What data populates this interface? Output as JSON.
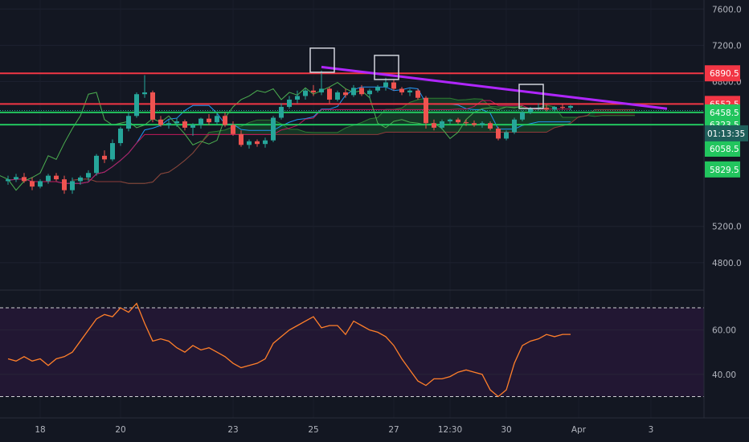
{
  "chart_data": [
    {
      "type": "candlestick",
      "panel": "price",
      "y_axis_ticks": [
        "7600.0",
        "7200.0",
        "6800.0",
        "5200.0",
        "4800.0"
      ],
      "ylim": [
        4550,
        7700
      ],
      "x_axis_ticks": [
        "18",
        "20",
        "23",
        "25",
        "27",
        "12:30",
        "30",
        "Apr",
        "3"
      ],
      "price_levels": [
        {
          "label": "6890.5",
          "value": 6890.5,
          "color": "#f23645"
        },
        {
          "label": "6552.5",
          "value": 6552.5,
          "color": "#f23645"
        },
        {
          "label": "6458.5",
          "value": 6458.5,
          "color": "#22c55e"
        },
        {
          "label": "6323.5",
          "value": 6323.5,
          "color": "#22c55e"
        },
        {
          "label": "6058.5",
          "value": 6058.5,
          "color": "#22c55e"
        },
        {
          "label": "5829.5",
          "value": 5829.5,
          "color": "#22c55e"
        }
      ],
      "current_price_line": 6480,
      "countdown": "01:13:35",
      "trendline": {
        "from": {
          "index": 39,
          "value": 6960
        },
        "to": {
          "index": 82,
          "value": 6500
        },
        "color": "#b026ff"
      },
      "highlight_boxes_at_index": [
        39,
        47,
        65
      ],
      "colors": {
        "up": "#26a69a",
        "down": "#ef5350",
        "tenkan": "#2196f3",
        "kijun": "#c2185b",
        "lagging": "#4caf50",
        "cloud_bull": "#163d27",
        "cloud_bear": "#3d1a1a"
      },
      "candles": [
        [
          5700,
          5760,
          5660,
          5720
        ],
        [
          5720,
          5780,
          5690,
          5745
        ],
        [
          5745,
          5790,
          5680,
          5700
        ],
        [
          5700,
          5740,
          5600,
          5640
        ],
        [
          5640,
          5720,
          5620,
          5700
        ],
        [
          5700,
          5780,
          5670,
          5760
        ],
        [
          5760,
          5790,
          5700,
          5720
        ],
        [
          5720,
          5760,
          5560,
          5600
        ],
        [
          5600,
          5740,
          5560,
          5700
        ],
        [
          5700,
          5760,
          5660,
          5740
        ],
        [
          5740,
          5820,
          5700,
          5790
        ],
        [
          5790,
          6000,
          5760,
          5980
        ],
        [
          5980,
          6040,
          5900,
          5940
        ],
        [
          5940,
          6160,
          5920,
          6120
        ],
        [
          6120,
          6300,
          6090,
          6280
        ],
        [
          6280,
          6460,
          6250,
          6420
        ],
        [
          6420,
          6680,
          6400,
          6660
        ],
        [
          6660,
          6870,
          6620,
          6680
        ],
        [
          6680,
          6700,
          6350,
          6380
        ],
        [
          6380,
          6420,
          6300,
          6320
        ],
        [
          6320,
          6380,
          6280,
          6340
        ],
        [
          6340,
          6400,
          6300,
          6360
        ],
        [
          6360,
          6380,
          6260,
          6290
        ],
        [
          6290,
          6340,
          6200,
          6320
        ],
        [
          6320,
          6400,
          6280,
          6390
        ],
        [
          6390,
          6440,
          6320,
          6350
        ],
        [
          6350,
          6460,
          6320,
          6420
        ],
        [
          6420,
          6460,
          6300,
          6320
        ],
        [
          6320,
          6360,
          6200,
          6220
        ],
        [
          6220,
          6260,
          6080,
          6100
        ],
        [
          6100,
          6160,
          6060,
          6140
        ],
        [
          6140,
          6160,
          6080,
          6110
        ],
        [
          6110,
          6180,
          6070,
          6150
        ],
        [
          6150,
          6420,
          6130,
          6400
        ],
        [
          6400,
          6560,
          6380,
          6520
        ],
        [
          6520,
          6640,
          6500,
          6600
        ],
        [
          6600,
          6700,
          6560,
          6640
        ],
        [
          6640,
          6720,
          6600,
          6700
        ],
        [
          6700,
          6760,
          6640,
          6680
        ],
        [
          6680,
          6920,
          6650,
          6720
        ],
        [
          6720,
          6740,
          6560,
          6600
        ],
        [
          6600,
          6700,
          6580,
          6680
        ],
        [
          6680,
          6720,
          6620,
          6650
        ],
        [
          6650,
          6760,
          6630,
          6730
        ],
        [
          6730,
          6760,
          6640,
          6660
        ],
        [
          6660,
          6720,
          6620,
          6700
        ],
        [
          6700,
          6760,
          6680,
          6740
        ],
        [
          6740,
          6840,
          6700,
          6790
        ],
        [
          6790,
          6820,
          6700,
          6720
        ],
        [
          6720,
          6740,
          6650,
          6680
        ],
        [
          6680,
          6720,
          6640,
          6700
        ],
        [
          6700,
          6720,
          6600,
          6620
        ],
        [
          6620,
          6640,
          6280,
          6340
        ],
        [
          6340,
          6380,
          6260,
          6290
        ],
        [
          6290,
          6380,
          6270,
          6360
        ],
        [
          6360,
          6390,
          6330,
          6380
        ],
        [
          6380,
          6400,
          6330,
          6350
        ],
        [
          6350,
          6380,
          6310,
          6340
        ],
        [
          6340,
          6370,
          6300,
          6320
        ],
        [
          6320,
          6360,
          6290,
          6340
        ],
        [
          6340,
          6360,
          6260,
          6280
        ],
        [
          6280,
          6300,
          6150,
          6170
        ],
        [
          6170,
          6260,
          6150,
          6240
        ],
        [
          6240,
          6400,
          6220,
          6380
        ],
        [
          6380,
          6480,
          6360,
          6460
        ],
        [
          6460,
          6520,
          6440,
          6500
        ],
        [
          6500,
          6560,
          6480,
          6510
        ],
        [
          6510,
          6540,
          6470,
          6490
        ],
        [
          6490,
          6530,
          6470,
          6520
        ],
        [
          6520,
          6560,
          6490,
          6510
        ],
        [
          6510,
          6540,
          6480,
          6530
        ]
      ]
    },
    {
      "type": "line",
      "panel": "oscillator",
      "y_axis_ticks": [
        "60.00",
        "40.00"
      ],
      "ylim": [
        24,
        74
      ],
      "bands": [
        70,
        30
      ],
      "colors": {
        "line": "#ff7f2a",
        "band": "#ffffff",
        "fill": "#221733"
      },
      "values": [
        47,
        46,
        48,
        46,
        47,
        44,
        47,
        48,
        50,
        55,
        60,
        65,
        67,
        66,
        70,
        68,
        72,
        63,
        55,
        56,
        55,
        52,
        50,
        53,
        51,
        52,
        50,
        48,
        45,
        43,
        44,
        45,
        47,
        54,
        57,
        60,
        62,
        64,
        66,
        61,
        62,
        62,
        58,
        64,
        62,
        60,
        59,
        57,
        53,
        47,
        42,
        37,
        35,
        38,
        38,
        39,
        41,
        42,
        41,
        40,
        33,
        30,
        33,
        45,
        53,
        55,
        56,
        58,
        57,
        58,
        58
      ]
    }
  ]
}
